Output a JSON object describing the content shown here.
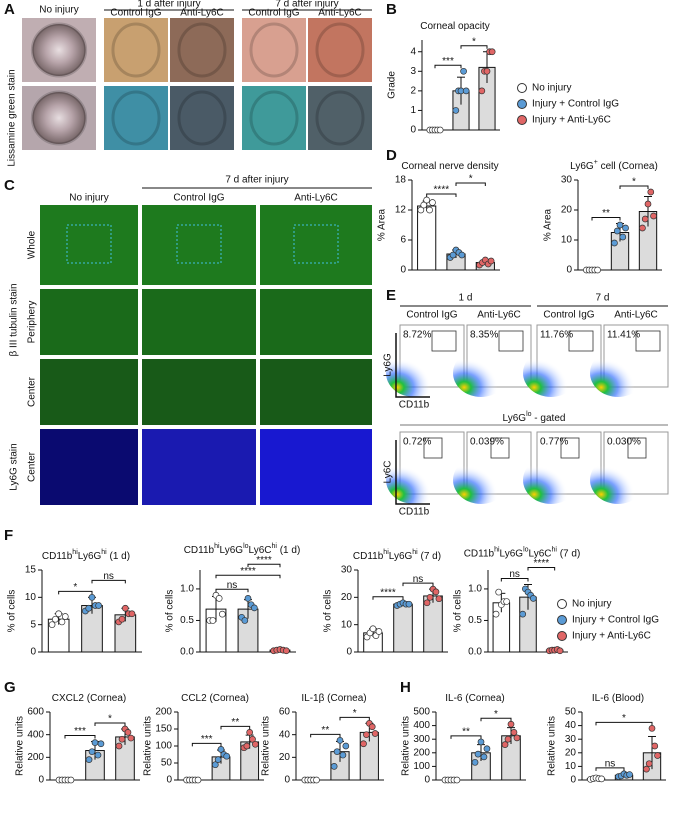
{
  "figure": {
    "panel_a": {
      "letter": "A",
      "columns": [
        "No injury"
      ],
      "groups": [
        {
          "title": "1 d after injury",
          "columns": [
            "Control IgG",
            "Anti-Ly6C"
          ]
        },
        {
          "title": "7 d after injury",
          "columns": [
            "Control IgG",
            "Anti-Ly6C"
          ]
        }
      ],
      "row_label": "Lissamine green stain"
    },
    "panel_c": {
      "letter": "C",
      "columns": [
        "No injury",
        "Control IgG",
        "Anti-Ly6C"
      ],
      "group_title": "7 d after injury",
      "rows": [
        "Whole",
        "Periphery",
        "Center",
        "Center"
      ],
      "stains": [
        "β III tubulin stain",
        "Ly6G stain"
      ]
    },
    "panel_e": {
      "letter": "E",
      "groups": [
        {
          "title": "1 d",
          "columns": [
            "Control IgG",
            "Anti-Ly6C"
          ]
        },
        {
          "title": "7 d",
          "columns": [
            "Control IgG",
            "Anti-Ly6C"
          ]
        }
      ],
      "row1_gates": [
        "8.72%",
        "8.35%",
        "11.76%",
        "11.41%"
      ],
      "row2_gates": [
        "0.72%",
        "0.039%",
        "0.77%",
        "0.030%"
      ],
      "row1_axes": [
        "Ly6G",
        "CD11b"
      ],
      "row2_axes": [
        "Ly6C",
        "CD11b"
      ],
      "row2_title": [
        "Ly6G",
        {
          "sup": "lo"
        },
        " - gated"
      ]
    },
    "letters": [
      "B",
      "D",
      "F",
      "G",
      "H"
    ],
    "legend": [
      {
        "name": "No injury",
        "color": "#ffffff"
      },
      {
        "name": "Injury + Control IgG",
        "color": "#5b9bd5"
      },
      {
        "name": "Injury + Anti-Ly6C",
        "color": "#e06666"
      }
    ],
    "bar_colors": [
      "#ffffff",
      "#dcdcdc",
      "#dcdcdc"
    ]
  },
  "chart_data": [
    {
      "type": "bar",
      "title": [
        "Corneal opacity"
      ],
      "ylabel": "Grade",
      "ylim": [
        0,
        4.6
      ],
      "yticks": [
        0,
        1,
        2,
        3,
        4
      ],
      "values": [
        0,
        2,
        3.2
      ],
      "errors": [
        0,
        0.7,
        0.8
      ],
      "points": [
        [
          0,
          0,
          0,
          0,
          0
        ],
        [
          1,
          2,
          2,
          3,
          2
        ],
        [
          2,
          3,
          3,
          4,
          4
        ]
      ],
      "annotations": [
        {
          "label": "***",
          "pair": [
            0,
            1
          ]
        },
        {
          "label": "*",
          "pair": [
            1,
            2
          ]
        }
      ]
    },
    {
      "type": "bar",
      "title": [
        "Corneal nerve density"
      ],
      "ylabel": "% Area",
      "ylim": [
        0,
        18
      ],
      "yticks": [
        0,
        6,
        12,
        18
      ],
      "values": [
        12.8,
        3.2,
        1.5
      ],
      "errors": [
        1,
        0.8,
        0.5
      ],
      "points": [
        [
          12,
          13,
          14,
          12,
          13.5
        ],
        [
          2.5,
          3,
          4,
          3.5,
          3
        ],
        [
          1,
          1.5,
          2,
          1.2,
          1.8
        ]
      ],
      "annotations": [
        {
          "label": "****",
          "pair": [
            0,
            1
          ]
        },
        {
          "label": "*",
          "pair": [
            1,
            2
          ]
        }
      ]
    },
    {
      "type": "bar",
      "title": [
        "Ly6G",
        {
          "sup": "+"
        },
        " cell (Cornea)"
      ],
      "ylabel": "% Area",
      "ylim": [
        0,
        30
      ],
      "yticks": [
        0,
        10,
        20,
        30
      ],
      "values": [
        0,
        12.5,
        19.5
      ],
      "errors": [
        0,
        3,
        5
      ],
      "points": [
        [
          0,
          0,
          0,
          0,
          0
        ],
        [
          9,
          13,
          15,
          11,
          14
        ],
        [
          14,
          17,
          22,
          26,
          18
        ]
      ],
      "annotations": [
        {
          "label": "**",
          "pair": [
            0,
            1
          ]
        },
        {
          "label": "*",
          "pair": [
            1,
            2
          ]
        }
      ]
    },
    {
      "type": "bar",
      "title": [
        "CD11b",
        {
          "sup": "hi"
        },
        "Ly6G",
        {
          "sup": "hi"
        },
        " (1 d)"
      ],
      "ylabel": "% of cells",
      "ylim": [
        0,
        15
      ],
      "yticks": [
        0,
        5,
        10,
        15
      ],
      "values": [
        6,
        8.5,
        6.8
      ],
      "errors": [
        1,
        1.5,
        1.2
      ],
      "points": [
        [
          5,
          6,
          7,
          5.5,
          6.5
        ],
        [
          7.5,
          8,
          10,
          8.5,
          8.5
        ],
        [
          5.5,
          6,
          8,
          7,
          7
        ]
      ],
      "annotations": [
        {
          "label": "*",
          "pair": [
            0,
            1
          ]
        },
        {
          "label": "ns",
          "pair": [
            1,
            2
          ]
        }
      ]
    },
    {
      "type": "bar",
      "title": [
        "CD11b",
        {
          "sup": "hi"
        },
        "Ly6G",
        {
          "sup": "lo"
        },
        "Ly6C",
        {
          "sup": "hi"
        },
        " (1 d)"
      ],
      "ylabel": "% of cells",
      "ylim": [
        0,
        1.3
      ],
      "yticks": [
        {
          "value": 0,
          "label": "0.0"
        },
        0.5,
        {
          "value": 1,
          "label": "1.0"
        }
      ],
      "values": [
        0.68,
        0.68,
        0.03
      ],
      "errors": [
        0.2,
        0.15,
        0.01
      ],
      "points": [
        [
          0.5,
          0.5,
          0.9,
          0.85,
          0.6
        ],
        [
          0.55,
          0.5,
          0.85,
          0.75,
          0.7
        ],
        [
          0.02,
          0.03,
          0.04,
          0.03,
          0.02
        ]
      ],
      "annotations": [
        {
          "label": "ns",
          "pair": [
            0,
            1
          ]
        },
        {
          "label": "****",
          "pair": [
            0,
            2
          ]
        },
        {
          "label": "****",
          "pair": [
            1,
            2
          ]
        }
      ]
    },
    {
      "type": "bar",
      "title": [
        "CD11b",
        {
          "sup": "hi"
        },
        "Ly6G",
        {
          "sup": "hi"
        },
        " (7 d)"
      ],
      "ylabel": "% of cells",
      "ylim": [
        0,
        30
      ],
      "yticks": [
        0,
        10,
        20,
        30
      ],
      "values": [
        7,
        17.5,
        20.5
      ],
      "errors": [
        1.5,
        0.5,
        2.5
      ],
      "points": [
        [
          5.5,
          7,
          8.5,
          6,
          7.5
        ],
        [
          17,
          17.5,
          18,
          17.5,
          17.5
        ],
        [
          18,
          20,
          23,
          22,
          19.5
        ]
      ],
      "annotations": [
        {
          "label": "****",
          "pair": [
            0,
            1
          ]
        },
        {
          "label": "ns",
          "pair": [
            1,
            2
          ]
        }
      ]
    },
    {
      "type": "bar",
      "title": [
        "CD11b",
        {
          "sup": "hi"
        },
        "Ly6G",
        {
          "sup": "lo"
        },
        "Ly6C",
        {
          "sup": "hi"
        },
        " (7 d)"
      ],
      "ylabel": "% of cells",
      "ylim": [
        0,
        1.3
      ],
      "yticks": [
        {
          "value": 0,
          "label": "0.0"
        },
        0.5,
        {
          "value": 1,
          "label": "1.0"
        }
      ],
      "values": [
        0.78,
        0.87,
        0.03
      ],
      "errors": [
        0.15,
        0.2,
        0.01
      ],
      "points": [
        [
          0.6,
          0.95,
          0.75,
          0.8,
          0.8
        ],
        [
          0.6,
          1.0,
          0.95,
          0.9,
          0.85
        ],
        [
          0.02,
          0.03,
          0.03,
          0.04,
          0.02
        ]
      ],
      "annotations": [
        {
          "label": "ns",
          "pair": [
            0,
            1
          ]
        },
        {
          "label": "****",
          "pair": [
            1,
            2
          ]
        }
      ]
    },
    {
      "type": "bar",
      "title": [
        "CXCL2 (Cornea)"
      ],
      "ylabel": "Relative units",
      "ylim": [
        0,
        600
      ],
      "yticks": [
        0,
        200,
        400,
        600
      ],
      "values": [
        0,
        260,
        380
      ],
      "errors": [
        0,
        80,
        70
      ],
      "points": [
        [
          0,
          0,
          0,
          0,
          0
        ],
        [
          180,
          250,
          330,
          220,
          320
        ],
        [
          300,
          360,
          450,
          420,
          370
        ]
      ],
      "annotations": [
        {
          "label": "***",
          "pair": [
            0,
            1
          ]
        },
        {
          "label": "*",
          "pair": [
            1,
            2
          ]
        }
      ]
    },
    {
      "type": "bar",
      "title": [
        "CCL2 (Cornea)"
      ],
      "ylabel": "Relative units",
      "ylim": [
        0,
        200
      ],
      "yticks": [
        0,
        50,
        100,
        150,
        200
      ],
      "values": [
        0,
        68,
        112
      ],
      "errors": [
        0,
        20,
        20
      ],
      "points": [
        [
          0,
          0,
          0,
          0,
          0
        ],
        [
          45,
          60,
          90,
          75,
          70
        ],
        [
          95,
          100,
          140,
          120,
          105
        ]
      ],
      "annotations": [
        {
          "label": "***",
          "pair": [
            0,
            1
          ]
        },
        {
          "label": "**",
          "pair": [
            1,
            2
          ]
        }
      ]
    },
    {
      "type": "bar",
      "title": [
        "IL-1β (Cornea)"
      ],
      "ylabel": "Relative units",
      "ylim": [
        0,
        60
      ],
      "yticks": [
        0,
        20,
        40,
        60
      ],
      "values": [
        0,
        25,
        42
      ],
      "errors": [
        0,
        9,
        8
      ],
      "points": [
        [
          0,
          0,
          0,
          0,
          0
        ],
        [
          12,
          25,
          35,
          22,
          30
        ],
        [
          32,
          40,
          50,
          47,
          41
        ]
      ],
      "annotations": [
        {
          "label": "**",
          "pair": [
            0,
            1
          ]
        },
        {
          "label": "*",
          "pair": [
            1,
            2
          ]
        }
      ]
    },
    {
      "type": "bar",
      "title": [
        "IL-6 (Cornea)"
      ],
      "ylabel": "Relative units",
      "ylim": [
        0,
        500
      ],
      "yticks": [
        0,
        100,
        200,
        300,
        400,
        500
      ],
      "values": [
        0,
        200,
        325
      ],
      "errors": [
        0,
        60,
        60
      ],
      "points": [
        [
          0,
          0,
          0,
          0,
          0
        ],
        [
          130,
          190,
          280,
          170,
          230
        ],
        [
          260,
          300,
          410,
          350,
          310
        ]
      ],
      "annotations": [
        {
          "label": "**",
          "pair": [
            0,
            1
          ]
        },
        {
          "label": "*",
          "pair": [
            1,
            2
          ]
        }
      ]
    },
    {
      "type": "bar",
      "title": [
        "IL-6 (Blood)"
      ],
      "ylabel": "Relative units",
      "ylim": [
        0,
        50
      ],
      "yticks": [
        0,
        10,
        20,
        30,
        40,
        50
      ],
      "values": [
        1,
        3.5,
        20
      ],
      "errors": [
        0.5,
        1,
        12
      ],
      "points": [
        [
          0.5,
          1,
          1.5,
          1,
          0.8
        ],
        [
          2.5,
          3,
          4.5,
          3.5,
          4
        ],
        [
          8,
          12,
          38,
          25,
          18
        ]
      ],
      "annotations": [
        {
          "label": "ns",
          "pair": [
            0,
            1
          ]
        },
        {
          "label": "*",
          "pair": [
            0,
            2
          ]
        }
      ]
    }
  ]
}
